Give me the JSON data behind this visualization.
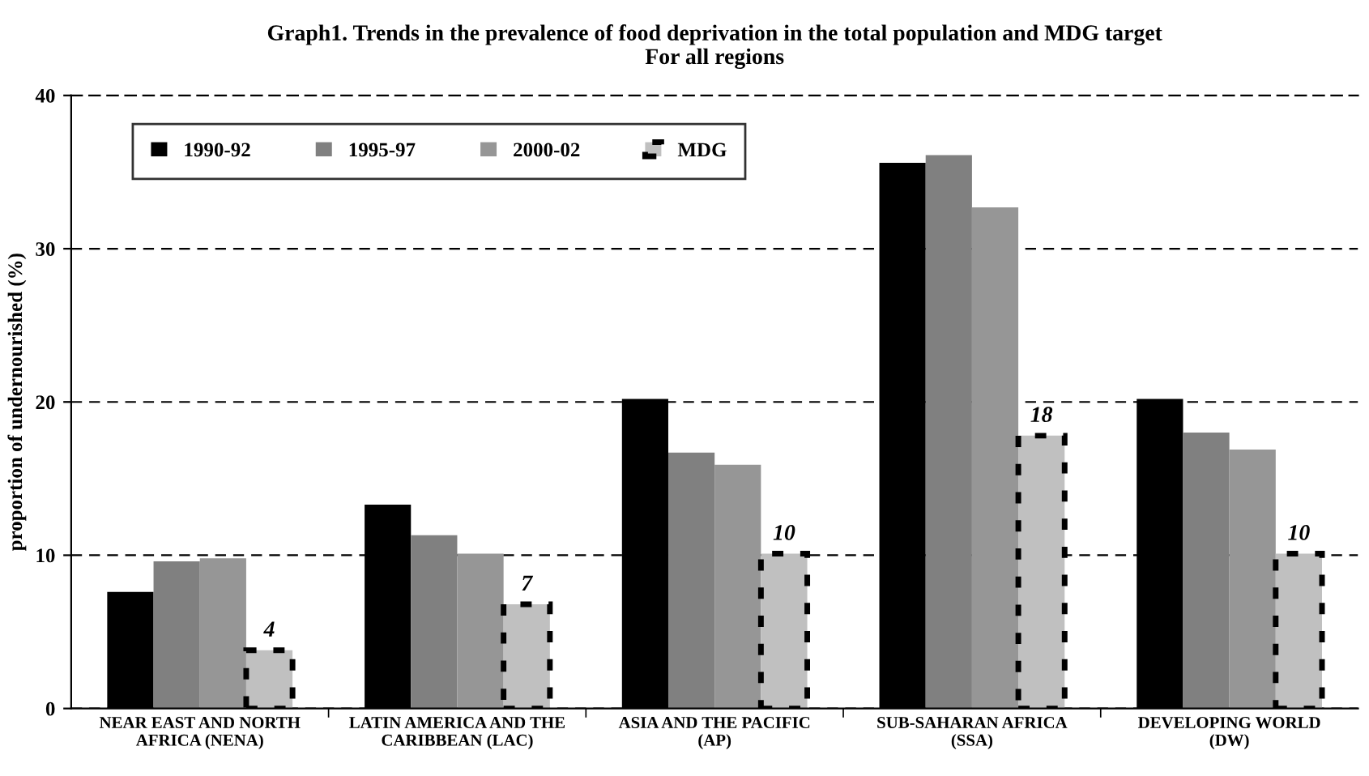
{
  "chart_data": {
    "type": "bar",
    "title": "Graph1. Trends in the prevalence of food deprivation in the total population and MDG target\nFor all regions",
    "ylabel": "proportion of undernourished (%)",
    "categories": [
      "NEAR EAST AND NORTH\nAFRICA (NENA)",
      "LATIN AMERICA AND THE\nCARIBBEAN (LAC)",
      "ASIA AND THE PACIFIC\n(AP)",
      "SUB-SAHARAN AFRICA\n(SSA)",
      "DEVELOPING WORLD\n(DW)"
    ],
    "series": [
      {
        "name": "1990-92",
        "color": "#000000",
        "values": [
          7.6,
          13.3,
          20.2,
          35.6,
          20.2
        ]
      },
      {
        "name": "1995-97",
        "color": "#808080",
        "values": [
          9.6,
          11.3,
          16.7,
          36.1,
          18.0
        ]
      },
      {
        "name": "2000-02",
        "color": "#969696",
        "values": [
          9.8,
          10.1,
          15.9,
          32.7,
          16.9
        ]
      },
      {
        "name": "MDG",
        "color": "#c0c0c0",
        "line_style": "dashed",
        "values": [
          3.8,
          6.8,
          10.1,
          17.8,
          10.1
        ],
        "value_labels": [
          "4",
          "7",
          "10",
          "18",
          "10"
        ]
      }
    ],
    "ylim": [
      0,
      40
    ],
    "yticks": [
      0,
      10,
      20,
      30,
      40
    ],
    "grid": "y",
    "legend": "top left"
  }
}
